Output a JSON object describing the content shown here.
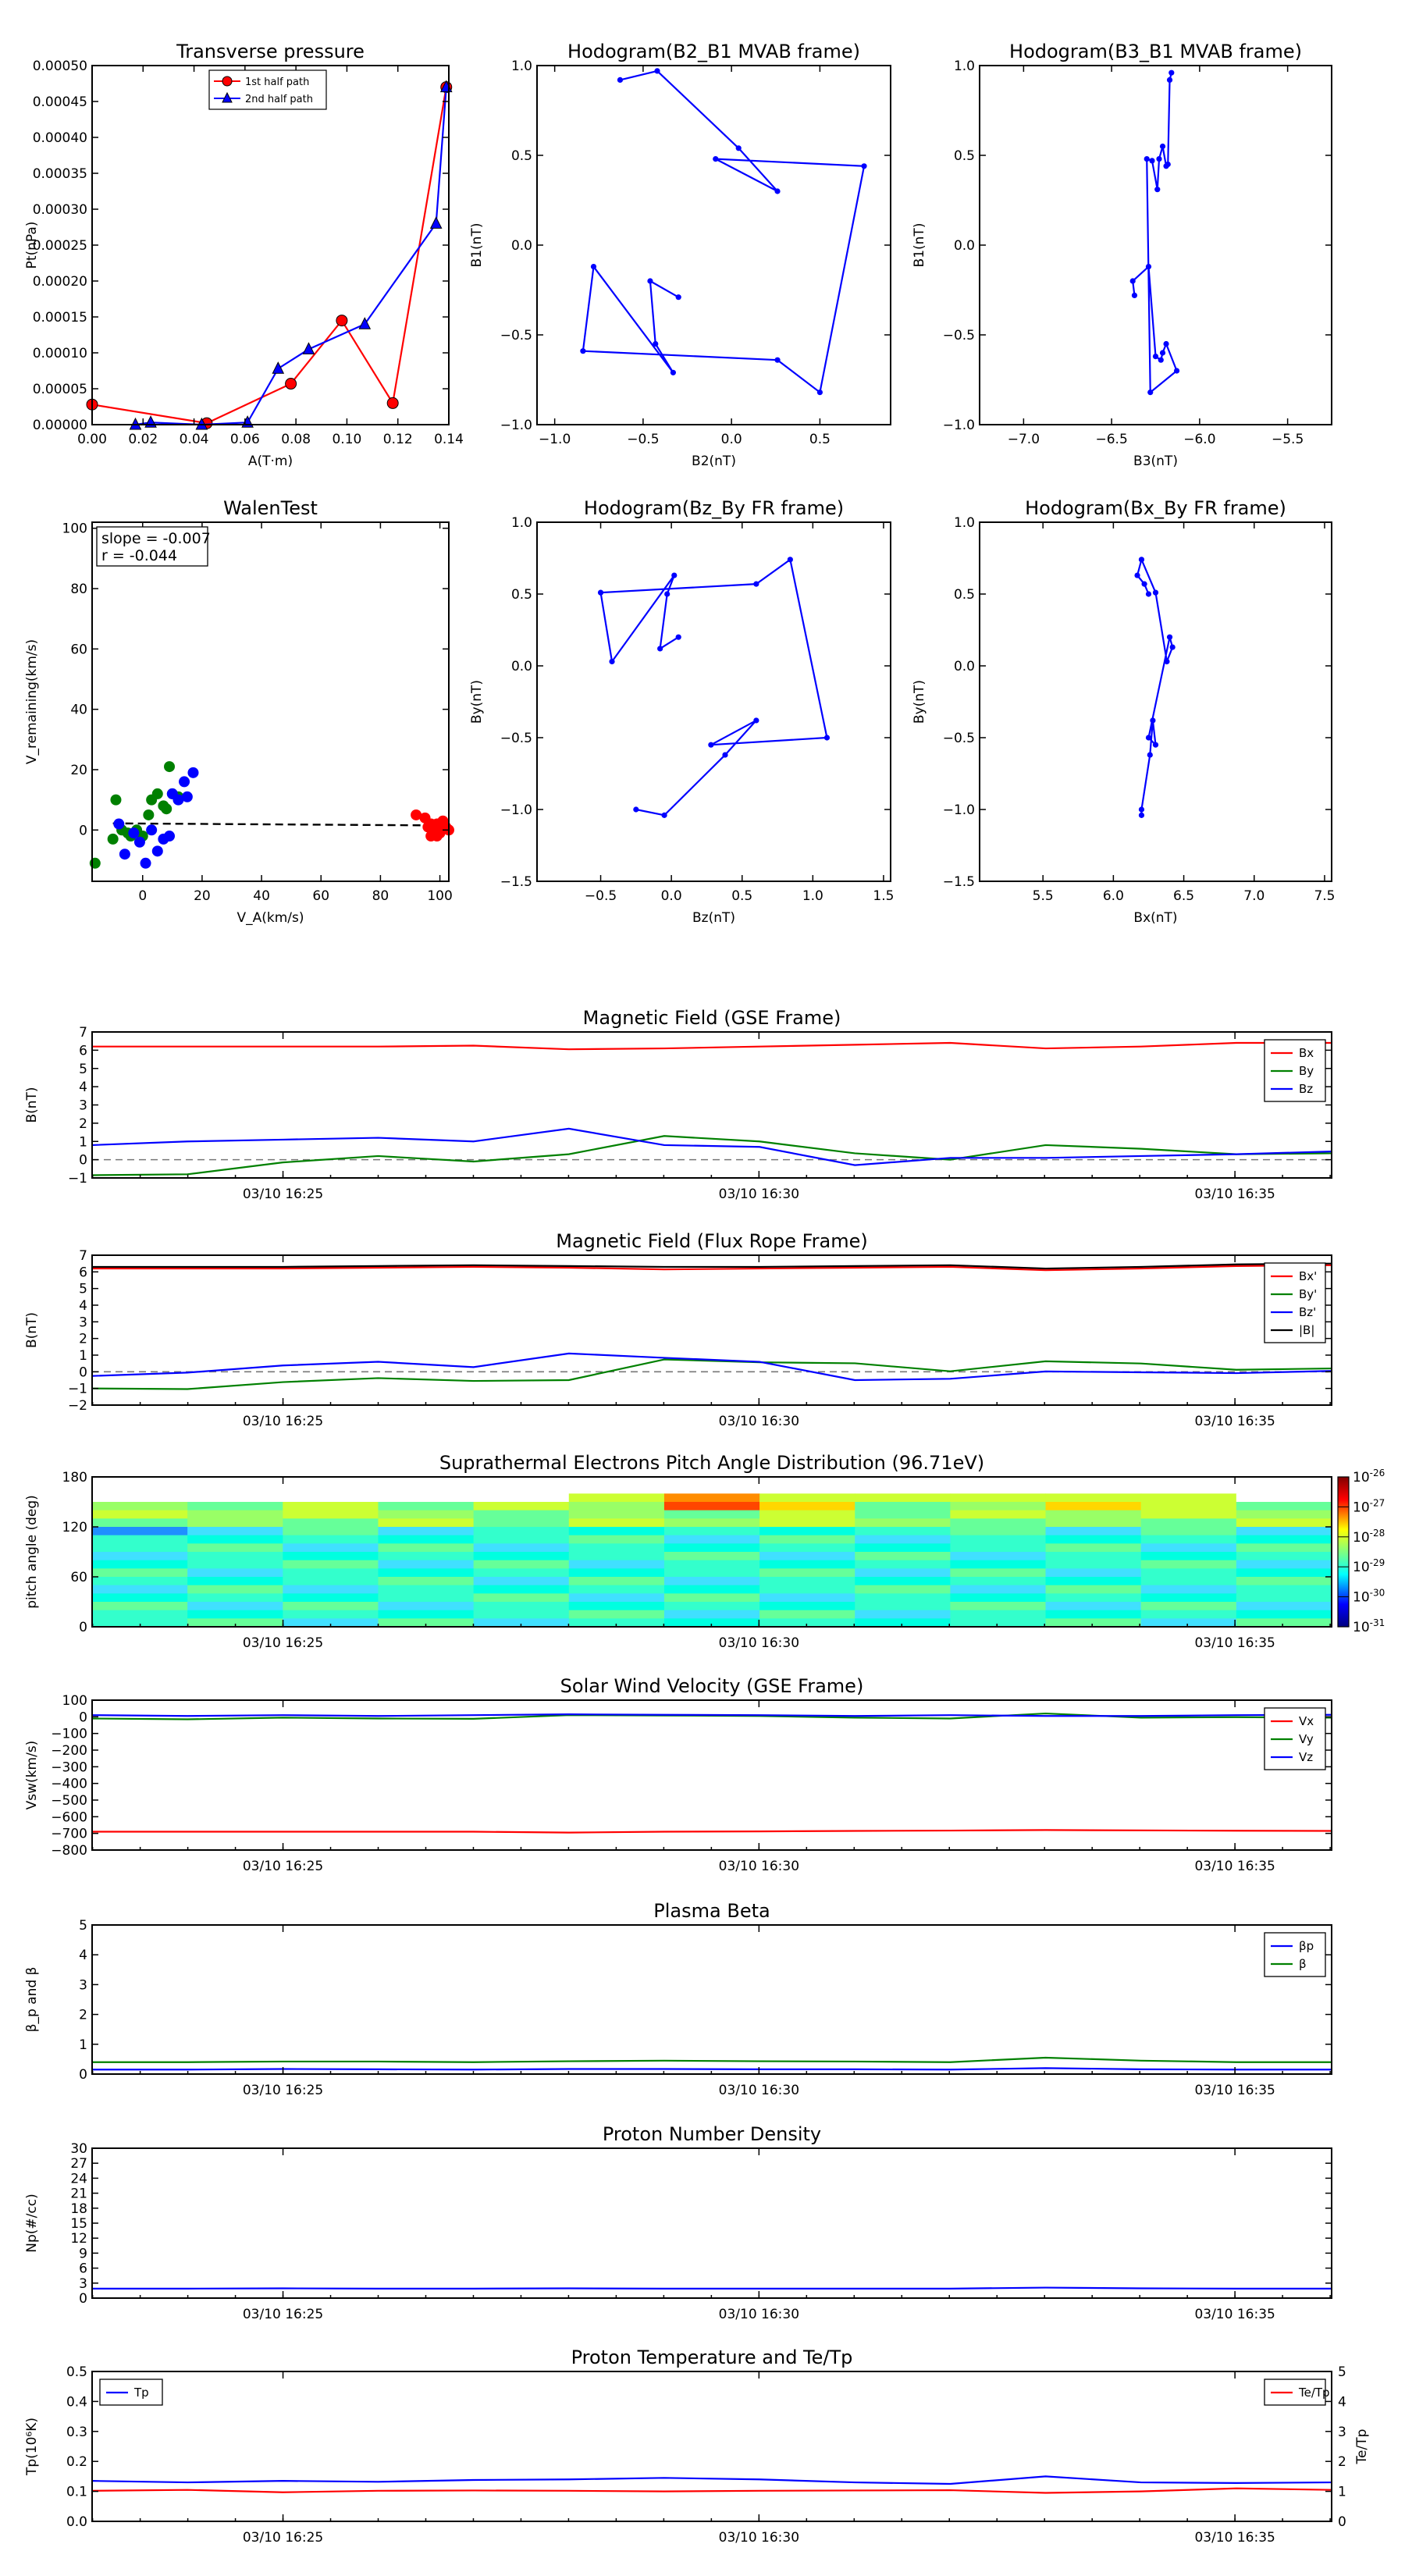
{
  "chart_data": [
    {
      "id": "tp",
      "type": "line",
      "title": "Transverse pressure",
      "xlabel": "A(T·m)",
      "ylabel": "Pt(nPa)",
      "xlim": [
        0,
        0.14
      ],
      "ylim": [
        0,
        0.0005
      ],
      "xticks": [
        "0.00",
        "0.02",
        "0.04",
        "0.06",
        "0.08",
        "0.10",
        "0.12",
        "0.14"
      ],
      "yticks": [
        "0.00000",
        "0.00005",
        "0.00010",
        "0.00015",
        "0.00020",
        "0.00025",
        "0.00030",
        "0.00035",
        "0.00040",
        "0.00045",
        "0.00050"
      ],
      "legend": [
        "1st half path",
        "2nd half path"
      ],
      "series": [
        {
          "name": "1st half path",
          "color": "#ff0000",
          "marker": "circle",
          "x": [
            0.0,
            0.045,
            0.078,
            0.098,
            0.118,
            0.139
          ],
          "y": [
            2.8e-05,
            2e-06,
            5.7e-05,
            0.000145,
            3e-05,
            0.00047
          ]
        },
        {
          "name": "2nd half path",
          "color": "#0000ff",
          "marker": "triangle",
          "x": [
            0.017,
            0.023,
            0.043,
            0.061,
            0.073,
            0.085,
            0.107,
            0.135,
            0.139
          ],
          "y": [
            0.0,
            3e-06,
            0.0,
            3e-06,
            7.8e-05,
            0.000105,
            0.00014,
            0.00028,
            0.00047
          ]
        }
      ]
    },
    {
      "id": "h1",
      "type": "line",
      "title": "Hodogram(B2_B1 MVAB frame)",
      "xlabel": "B2(nT)",
      "ylabel": "B1(nT)",
      "xlim": [
        -1.1,
        0.9
      ],
      "ylim": [
        -1.0,
        1.0
      ],
      "xticks": [
        "−1.0",
        "−0.5",
        "0.0",
        "0.5"
      ],
      "xtickvals": [
        -1.0,
        -0.5,
        0.0,
        0.5
      ],
      "yticks": [
        "−1.0",
        "−0.5",
        "0.0",
        "0.5",
        "1.0"
      ],
      "ytickvals": [
        -1.0,
        -0.5,
        0.0,
        0.5,
        1.0
      ],
      "series": [
        {
          "color": "#0000ff",
          "x": [
            -0.63,
            -0.42,
            0.04,
            0.26,
            -0.09,
            0.75,
            0.5,
            0.26,
            -0.84,
            -0.78,
            -0.33,
            -0.43,
            -0.46,
            -0.3
          ],
          "y": [
            0.92,
            0.97,
            0.54,
            0.3,
            0.48,
            0.44,
            -0.82,
            -0.64,
            -0.59,
            -0.12,
            -0.71,
            -0.55,
            -0.2,
            -0.29
          ]
        }
      ]
    },
    {
      "id": "h2",
      "type": "line",
      "title": "Hodogram(B3_B1 MVAB frame)",
      "xlabel": "B3(nT)",
      "ylabel": "B1(nT)",
      "xlim": [
        -7.25,
        -5.25
      ],
      "ylim": [
        -1.0,
        1.0
      ],
      "xticks": [
        "−7.0",
        "−6.5",
        "−6.0",
        "−5.5"
      ],
      "xtickvals": [
        -7.0,
        -6.5,
        -6.0,
        -5.5
      ],
      "yticks": [
        "−1.0",
        "−0.5",
        "0.0",
        "0.5",
        "1.0"
      ],
      "ytickvals": [
        -1.0,
        -0.5,
        0.0,
        0.5,
        1.0
      ],
      "series": [
        {
          "color": "#0000ff",
          "x": [
            -6.16,
            -6.17,
            -6.18,
            -6.19,
            -6.21,
            -6.23,
            -6.24,
            -6.27,
            -6.3,
            -6.28,
            -6.13,
            -6.19,
            -6.21,
            -6.22,
            -6.25,
            -6.29,
            -6.38,
            -6.37
          ],
          "y": [
            0.96,
            0.92,
            0.45,
            0.44,
            0.55,
            0.48,
            0.31,
            0.47,
            0.48,
            -0.82,
            -0.7,
            -0.55,
            -0.6,
            -0.64,
            -0.62,
            -0.12,
            -0.2,
            -0.28
          ]
        }
      ]
    },
    {
      "id": "walen",
      "type": "scatter",
      "title": "WalenTest",
      "xlabel": "V_A(km/s)",
      "ylabel": "V_remaining(km/s)",
      "xlim": [
        -17,
        103
      ],
      "ylim": [
        -17,
        102
      ],
      "xticks": [
        "0",
        "20",
        "40",
        "60",
        "80",
        "100"
      ],
      "xtickvals": [
        0,
        20,
        40,
        60,
        80,
        100
      ],
      "yticks": [
        "0",
        "20",
        "40",
        "60",
        "80",
        "100"
      ],
      "ytickvals": [
        0,
        20,
        40,
        60,
        80,
        100
      ],
      "annotation": [
        "slope = -0.007",
        "r = -0.044"
      ],
      "fit": {
        "x": [
          -10,
          103
        ],
        "y": [
          2.2,
          1.5
        ]
      },
      "series": [
        {
          "name": "Vx",
          "color": "#ff0000",
          "x": [
            92,
            95,
            96,
            97,
            98,
            99,
            100,
            101,
            102,
            103,
            99,
            97
          ],
          "y": [
            5,
            4,
            1,
            -2,
            0,
            2,
            -1,
            3,
            1,
            0,
            -2,
            2
          ]
        },
        {
          "name": "Vy",
          "color": "#008000",
          "x": [
            -16,
            -10,
            -9,
            -7,
            -5,
            -4,
            -2,
            0,
            2,
            3,
            5,
            7,
            8,
            9,
            10,
            12
          ],
          "y": [
            -11,
            -3,
            10,
            0,
            -1,
            -2,
            0,
            -2,
            5,
            10,
            12,
            8,
            7,
            21,
            12,
            11
          ]
        },
        {
          "name": "Vz",
          "color": "#0000ff",
          "x": [
            -8,
            -6,
            -3,
            -1,
            1,
            3,
            5,
            7,
            9,
            10,
            12,
            14,
            15,
            17
          ],
          "y": [
            2,
            -8,
            -1,
            -4,
            -11,
            0,
            -7,
            -3,
            -2,
            12,
            10,
            16,
            11,
            19
          ]
        }
      ]
    },
    {
      "id": "h3",
      "type": "line",
      "title": "Hodogram(Bz_By FR frame)",
      "xlabel": "Bz(nT)",
      "ylabel": "By(nT)",
      "xlim": [
        -0.95,
        1.55
      ],
      "ylim": [
        -1.5,
        1.0
      ],
      "xticks": [
        "−0.5",
        "0.0",
        "0.5",
        "1.0",
        "1.5"
      ],
      "xtickvals": [
        -0.5,
        0.0,
        0.5,
        1.0,
        1.5
      ],
      "yticks": [
        "−1.5",
        "−1.0",
        "−0.5",
        "0.0",
        "0.5",
        "1.0"
      ],
      "ytickvals": [
        -1.5,
        -1.0,
        -0.5,
        0.0,
        0.5,
        1.0
      ],
      "series": [
        {
          "color": "#0000ff",
          "x": [
            -0.25,
            -0.05,
            0.38,
            0.6,
            0.28,
            1.1,
            0.84,
            0.6,
            -0.5,
            -0.42,
            0.02,
            -0.03,
            -0.08,
            0.05
          ],
          "y": [
            -1.0,
            -1.04,
            -0.62,
            -0.38,
            -0.55,
            -0.5,
            0.74,
            0.57,
            0.51,
            0.03,
            0.63,
            0.5,
            0.12,
            0.2
          ]
        }
      ]
    },
    {
      "id": "h4",
      "type": "line",
      "title": "Hodogram(Bx_By FR frame)",
      "xlabel": "Bx(nT)",
      "ylabel": "By(nT)",
      "xlim": [
        5.05,
        7.55
      ],
      "ylim": [
        -1.5,
        1.0
      ],
      "xticks": [
        "5.5",
        "6.0",
        "6.5",
        "7.0",
        "7.5"
      ],
      "xtickvals": [
        5.5,
        6.0,
        6.5,
        7.0,
        7.5
      ],
      "yticks": [
        "−1.5",
        "−1.0",
        "−0.5",
        "0.0",
        "0.5",
        "1.0"
      ],
      "ytickvals": [
        -1.5,
        -1.0,
        -0.5,
        0.0,
        0.5,
        1.0
      ],
      "series": [
        {
          "color": "#0000ff",
          "x": [
            6.2,
            6.2,
            6.26,
            6.28,
            6.3,
            6.25,
            6.4,
            6.42,
            6.38,
            6.3,
            6.2,
            6.17,
            6.22,
            6.25
          ],
          "y": [
            -1.04,
            -1.0,
            -0.62,
            -0.38,
            -0.55,
            -0.5,
            0.2,
            0.13,
            0.03,
            0.51,
            0.74,
            0.63,
            0.57,
            0.5
          ]
        }
      ]
    },
    {
      "id": "magGSE",
      "type": "line",
      "title": "Magnetic Field (GSE Frame)",
      "ylabel": "B(nT)",
      "ylim": [
        -1,
        7
      ],
      "yticks": [
        "−1",
        "0",
        "1",
        "2",
        "3",
        "4",
        "5",
        "6",
        "7"
      ],
      "ytickvals": [
        -1,
        0,
        1,
        2,
        3,
        4,
        5,
        6,
        7
      ],
      "xticks": [
        "03/10 16:25",
        "03/10 16:30",
        "03/10 16:35"
      ],
      "legend": [
        "Bx",
        "By",
        "Bz"
      ],
      "zero_line": true,
      "series": [
        {
          "name": "Bx",
          "color": "#ff0000",
          "y": [
            6.2,
            6.2,
            6.2,
            6.2,
            6.25,
            6.05,
            6.1,
            6.2,
            6.3,
            6.4,
            6.1,
            6.2,
            6.4,
            6.4
          ]
        },
        {
          "name": "By",
          "color": "#008000",
          "y": [
            -0.85,
            -0.8,
            -0.15,
            0.2,
            -0.1,
            0.3,
            1.3,
            1.0,
            0.35,
            0.0,
            0.8,
            0.6,
            0.3,
            0.35
          ]
        },
        {
          "name": "Bz",
          "color": "#0000ff",
          "y": [
            0.8,
            1.0,
            1.1,
            1.2,
            1.0,
            1.7,
            0.8,
            0.7,
            -0.3,
            0.1,
            0.1,
            0.2,
            0.3,
            0.45
          ]
        }
      ]
    },
    {
      "id": "magFR",
      "type": "line",
      "title": "Magnetic Field (Flux Rope Frame)",
      "ylabel": "B(nT)",
      "ylim": [
        -2,
        7
      ],
      "yticks": [
        "−2",
        "−1",
        "0",
        "1",
        "2",
        "3",
        "4",
        "5",
        "6",
        "7"
      ],
      "ytickvals": [
        -2,
        -1,
        0,
        1,
        2,
        3,
        4,
        5,
        6,
        7
      ],
      "xticks": [
        "03/10 16:25",
        "03/10 16:30",
        "03/10 16:35"
      ],
      "legend": [
        "Bx'",
        "By'",
        "Bz'",
        "|B|"
      ],
      "zero_line": true,
      "series": [
        {
          "name": "Bx'",
          "color": "#ff0000",
          "y": [
            6.2,
            6.2,
            6.2,
            6.25,
            6.3,
            6.25,
            6.15,
            6.2,
            6.25,
            6.3,
            6.1,
            6.2,
            6.35,
            6.4
          ]
        },
        {
          "name": "By'",
          "color": "#008000",
          "y": [
            -1.0,
            -1.04,
            -0.62,
            -0.38,
            -0.55,
            -0.5,
            0.74,
            0.57,
            0.51,
            0.03,
            0.63,
            0.5,
            0.12,
            0.2
          ]
        },
        {
          "name": "Bz'",
          "color": "#0000ff",
          "y": [
            -0.25,
            -0.05,
            0.38,
            0.6,
            0.28,
            1.1,
            0.84,
            0.6,
            -0.5,
            -0.42,
            0.02,
            -0.03,
            -0.08,
            0.05
          ]
        },
        {
          "name": "|B|",
          "color": "#000000",
          "y": [
            6.3,
            6.3,
            6.3,
            6.35,
            6.4,
            6.35,
            6.3,
            6.3,
            6.35,
            6.4,
            6.2,
            6.3,
            6.45,
            6.5
          ]
        }
      ]
    },
    {
      "id": "pad",
      "type": "heatmap",
      "title": "Suprathermal Electrons Pitch Angle Distribution (96.71eV)",
      "ylabel": "pitch angle (deg)",
      "ylim": [
        0,
        180
      ],
      "yticks": [
        "0",
        "60",
        "120",
        "180"
      ],
      "ytickvals": [
        0,
        60,
        120,
        180
      ],
      "xticks": [
        "03/10 16:25",
        "03/10 16:30",
        "03/10 16:35"
      ],
      "colorbar": {
        "labels": [
          "10",
          "10",
          "10",
          "10",
          "10",
          "10"
        ],
        "exponents": [
          "-26",
          "-27",
          "-28",
          "-29",
          "-30",
          "-31"
        ]
      }
    },
    {
      "id": "vsw",
      "type": "line",
      "title": "Solar Wind Velocity (GSE Frame)",
      "ylabel": "Vsw(km/s)",
      "ylim": [
        -800,
        100
      ],
      "yticks": [
        "−800",
        "−700",
        "−600",
        "−500",
        "−400",
        "−300",
        "−200",
        "−100",
        "0",
        "100"
      ],
      "ytickvals": [
        -800,
        -700,
        -600,
        -500,
        -400,
        -300,
        -200,
        -100,
        0,
        100
      ],
      "xticks": [
        "03/10 16:25",
        "03/10 16:30",
        "03/10 16:35"
      ],
      "legend": [
        "Vx",
        "Vy",
        "Vz"
      ],
      "series": [
        {
          "name": "Vx",
          "color": "#ff0000",
          "y": [
            -690,
            -690,
            -690,
            -690,
            -690,
            -695,
            -690,
            -688,
            -685,
            -683,
            -680,
            -682,
            -684,
            -685
          ]
        },
        {
          "name": "Vy",
          "color": "#008000",
          "y": [
            -10,
            -15,
            -5,
            -10,
            -12,
            10,
            8,
            5,
            -5,
            -10,
            20,
            -5,
            -2,
            -5
          ]
        },
        {
          "name": "Vz",
          "color": "#0000ff",
          "y": [
            10,
            5,
            10,
            5,
            10,
            15,
            12,
            10,
            5,
            10,
            5,
            5,
            10,
            12
          ]
        }
      ]
    },
    {
      "id": "beta",
      "type": "line",
      "title": "Plasma Beta",
      "ylabel": "β_p and β",
      "ylim": [
        0,
        5
      ],
      "yticks": [
        "0",
        "1",
        "2",
        "3",
        "4",
        "5"
      ],
      "ytickvals": [
        0,
        1,
        2,
        3,
        4,
        5
      ],
      "xticks": [
        "03/10 16:25",
        "03/10 16:30",
        "03/10 16:35"
      ],
      "legend": [
        "βp",
        "β"
      ],
      "series": [
        {
          "name": "βp",
          "color": "#0000ff",
          "y": [
            0.15,
            0.15,
            0.17,
            0.16,
            0.15,
            0.17,
            0.17,
            0.16,
            0.16,
            0.15,
            0.2,
            0.16,
            0.15,
            0.15
          ]
        },
        {
          "name": "β",
          "color": "#008000",
          "y": [
            0.4,
            0.4,
            0.42,
            0.42,
            0.4,
            0.43,
            0.45,
            0.43,
            0.42,
            0.4,
            0.55,
            0.45,
            0.4,
            0.4
          ]
        }
      ]
    },
    {
      "id": "np",
      "type": "line",
      "title": "Proton Number Density",
      "ylabel": "Np(#/cc)",
      "ylim": [
        0,
        30
      ],
      "yticks": [
        "0",
        "3",
        "6",
        "9",
        "12",
        "15",
        "18",
        "21",
        "24",
        "27",
        "30"
      ],
      "ytickvals": [
        0,
        3,
        6,
        9,
        12,
        15,
        18,
        21,
        24,
        27,
        30
      ],
      "xticks": [
        "03/10 16:25",
        "03/10 16:30",
        "03/10 16:35"
      ],
      "series": [
        {
          "name": "Np",
          "color": "#0000ff",
          "y": [
            1.9,
            1.9,
            1.95,
            1.9,
            1.9,
            1.95,
            1.9,
            1.9,
            1.9,
            1.9,
            2.1,
            1.95,
            1.9,
            1.9
          ]
        }
      ]
    },
    {
      "id": "tpr",
      "type": "line",
      "title": "Proton Temperature and Te/Tp",
      "ylabel": "Tp(10⁶K)",
      "ylabel_right": "Te/Tp",
      "ylim": [
        0,
        0.5
      ],
      "yticks": [
        "0.0",
        "0.1",
        "0.2",
        "0.3",
        "0.4",
        "0.5"
      ],
      "ytickvals": [
        0,
        0.1,
        0.2,
        0.3,
        0.4,
        0.5
      ],
      "ylim_right": [
        0,
        5
      ],
      "yticks_right": [
        "0",
        "1",
        "2",
        "3",
        "4",
        "5"
      ],
      "ytickvals_right": [
        0,
        1,
        2,
        3,
        4,
        5
      ],
      "xticks": [
        "03/10 16:25",
        "03/10 16:30",
        "03/10 16:35"
      ],
      "legend": [
        "Tp"
      ],
      "legend_right": [
        "Te/Tp"
      ],
      "series": [
        {
          "name": "Tp",
          "color": "#0000ff",
          "y": [
            0.135,
            0.13,
            0.135,
            0.132,
            0.138,
            0.14,
            0.145,
            0.14,
            0.13,
            0.125,
            0.15,
            0.13,
            0.128,
            0.13
          ]
        },
        {
          "name": "Te/Tp",
          "color": "#ff0000",
          "axis": "right",
          "y": [
            1.02,
            1.05,
            0.97,
            1.02,
            1.03,
            1.02,
            1.0,
            1.02,
            1.03,
            1.04,
            0.95,
            1.0,
            1.1,
            1.05
          ]
        }
      ]
    }
  ]
}
